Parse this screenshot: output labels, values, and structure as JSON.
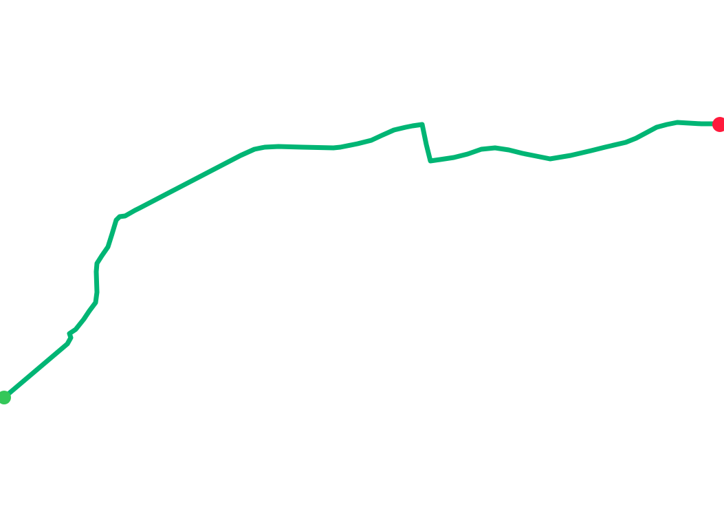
{
  "map": {
    "background_color": "#ffffff",
    "route": {
      "line_color": "#00b574"
    },
    "start_marker": {
      "color": "#34c759",
      "icon": "start-point-icon"
    },
    "end_marker": {
      "color": "#ff1a3c",
      "icon": "end-point-icon"
    }
  }
}
